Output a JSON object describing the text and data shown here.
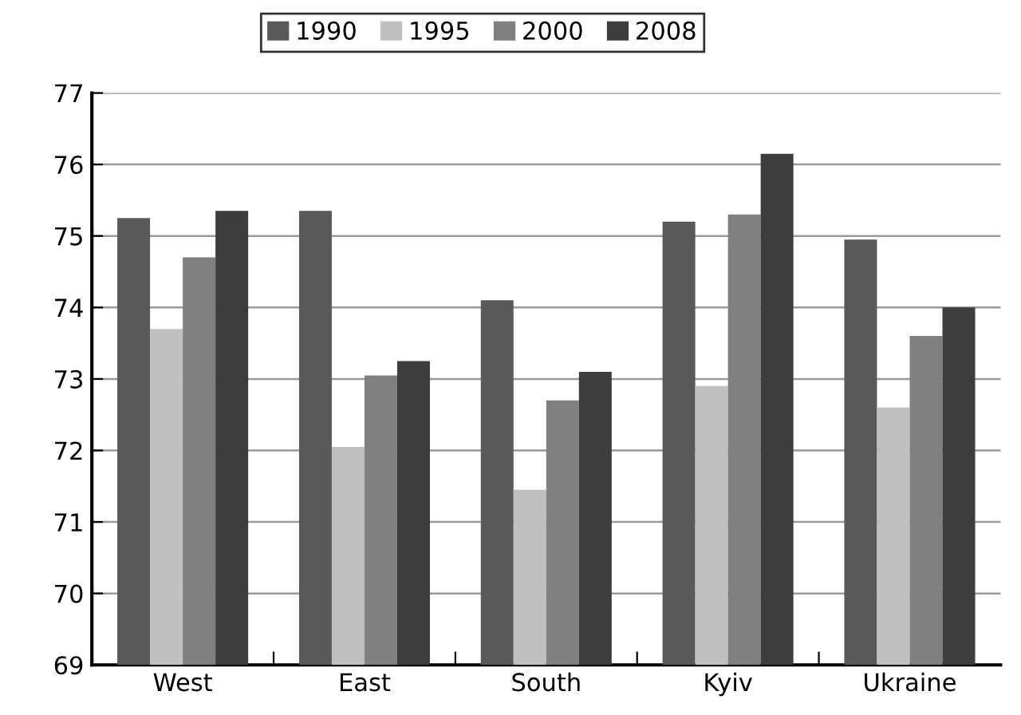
{
  "chart_data": {
    "type": "bar",
    "categories": [
      "West",
      "East",
      "South",
      "Kyiv",
      "Ukraine"
    ],
    "series": [
      {
        "name": "1990",
        "color": "#595959",
        "values": [
          75.25,
          75.35,
          74.1,
          75.2,
          74.95
        ]
      },
      {
        "name": "1995",
        "color": "#c0c0c0",
        "values": [
          73.7,
          72.05,
          71.45,
          72.9,
          72.6
        ]
      },
      {
        "name": "2000",
        "color": "#808080",
        "values": [
          74.7,
          73.05,
          72.7,
          75.3,
          73.6
        ]
      },
      {
        "name": "2008",
        "color": "#3d3d3d",
        "values": [
          75.35,
          73.25,
          73.1,
          76.15,
          74.0
        ]
      }
    ],
    "ylim": [
      69,
      77
    ],
    "yticks": [
      69,
      70,
      71,
      72,
      73,
      74,
      75,
      76,
      77
    ],
    "grid": "y",
    "legend": "top"
  }
}
